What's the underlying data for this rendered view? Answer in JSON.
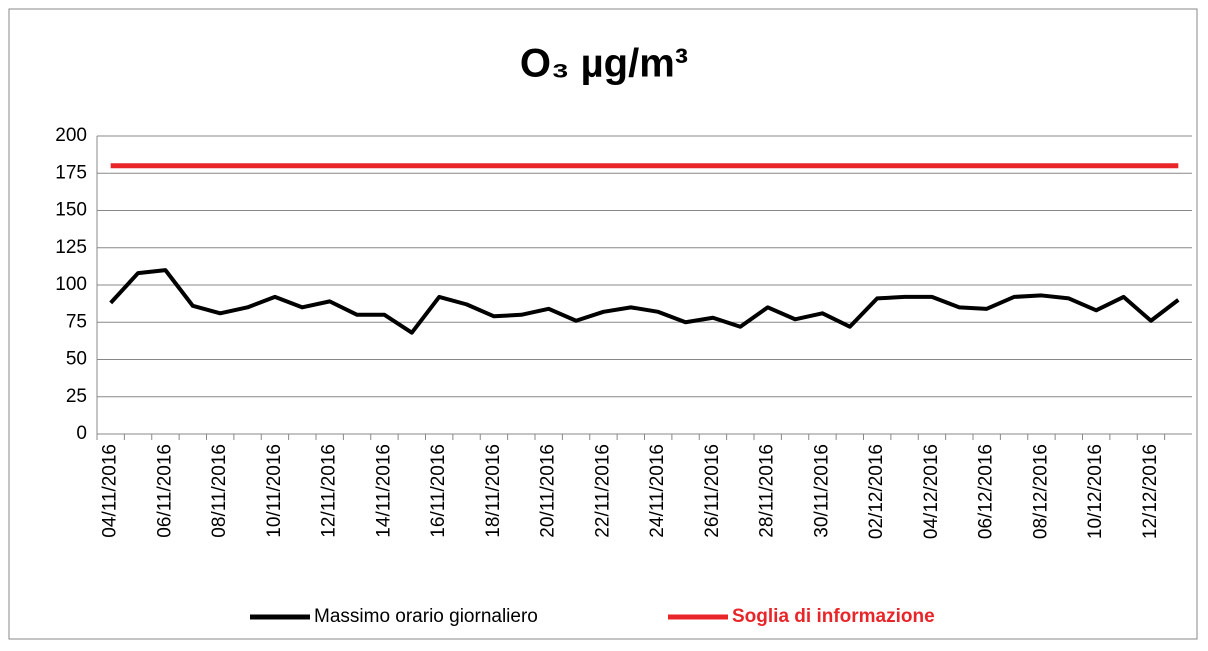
{
  "chart_data": {
    "type": "line",
    "title": "O₃ µg/m³",
    "categories": [
      "04/11/2016",
      null,
      "06/11/2016",
      null,
      "08/11/2016",
      null,
      "10/11/2016",
      null,
      "12/11/2016",
      null,
      "14/11/2016",
      null,
      "16/11/2016",
      null,
      "18/11/2016",
      null,
      "20/11/2016",
      null,
      "22/11/2016",
      null,
      "24/11/2016",
      null,
      "26/11/2016",
      null,
      "28/11/2016",
      null,
      "30/11/2016",
      null,
      "02/12/2016",
      null,
      "04/12/2016",
      null,
      "06/12/2016",
      null,
      "08/12/2016",
      null,
      "10/12/2016",
      null,
      "12/12/2016",
      null
    ],
    "series": [
      {
        "name": "Massimo orario giornaliero",
        "color": "#000000",
        "values": [
          88,
          108,
          110,
          86,
          81,
          85,
          92,
          85,
          89,
          80,
          80,
          68,
          92,
          87,
          79,
          80,
          84,
          76,
          82,
          85,
          82,
          75,
          78,
          72,
          85,
          77,
          81,
          72,
          91,
          92,
          92,
          85,
          84,
          92,
          93,
          91,
          83,
          92,
          76,
          90
        ]
      },
      {
        "name": "Soglia di informazione",
        "color": "#e8262a",
        "values": [
          180,
          180,
          180,
          180,
          180,
          180,
          180,
          180,
          180,
          180,
          180,
          180,
          180,
          180,
          180,
          180,
          180,
          180,
          180,
          180,
          180,
          180,
          180,
          180,
          180,
          180,
          180,
          180,
          180,
          180,
          180,
          180,
          180,
          180,
          180,
          180,
          180,
          180,
          180,
          180
        ]
      }
    ],
    "ylim": [
      0,
      200
    ],
    "yticks": [
      0,
      25,
      50,
      75,
      100,
      125,
      150,
      175,
      200
    ],
    "grid": true,
    "legend": "bottom"
  }
}
